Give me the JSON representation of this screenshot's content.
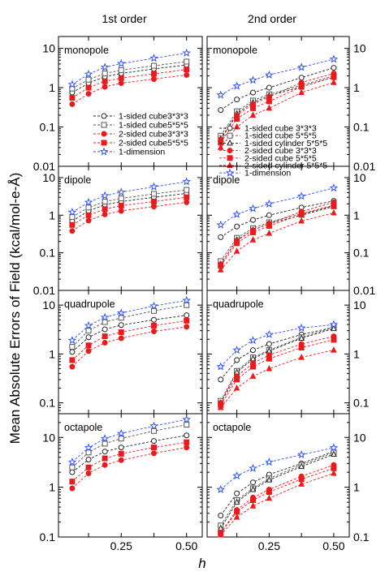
{
  "figure": {
    "column_titles": [
      "1st order",
      "2nd order"
    ],
    "ylabel": "Mean Absolute Errors of Field (kcal/mol-e-Å)",
    "xlabel": "h"
  },
  "colors": {
    "black": "#222222",
    "gray": "#555555",
    "red": "#e02020",
    "blue": "#3355ee"
  },
  "chart_data": [
    {
      "type": "line",
      "panel": "1st order / monopole",
      "label": "monopole",
      "yscale": "log",
      "ylim": [
        0.01,
        20
      ],
      "xlim": [
        0.01,
        0.56
      ],
      "x": [
        0.0625,
        0.125,
        0.1875,
        0.25,
        0.375,
        0.5
      ],
      "xticks": [
        "0.25",
        "0.50"
      ],
      "yticks": [
        "0.01",
        "0.1",
        "1",
        "10"
      ],
      "legend": "bottom-left",
      "series": [
        {
          "name": "1-sided cube3*3*3",
          "color": "black",
          "marker": "circle-open",
          "values": [
            0.75,
            1.3,
            1.9,
            2.3,
            3.0,
            3.8
          ]
        },
        {
          "name": "1-sided cube5*5*5",
          "color": "gray",
          "marker": "square-open",
          "values": [
            0.95,
            1.6,
            2.3,
            2.8,
            3.6,
            4.6
          ]
        },
        {
          "name": "2-sided cube3*3*3",
          "color": "red",
          "marker": "circle",
          "values": [
            0.38,
            0.7,
            1.05,
            1.3,
            1.65,
            2.1
          ]
        },
        {
          "name": "2-sided cube5*5*5",
          "color": "red",
          "marker": "square",
          "values": [
            0.55,
            1.0,
            1.45,
            1.75,
            2.25,
            2.9
          ]
        },
        {
          "name": "1-dimension",
          "color": "blue",
          "marker": "star-open",
          "values": [
            1.2,
            2.2,
            3.3,
            4.1,
            5.6,
            7.6
          ]
        }
      ]
    },
    {
      "type": "line",
      "panel": "1st order / dipole",
      "label": "dipole",
      "yscale": "log",
      "ylim": [
        0.01,
        20
      ],
      "xlim": [
        0.01,
        0.56
      ],
      "x": [
        0.0625,
        0.125,
        0.1875,
        0.25,
        0.375,
        0.5
      ],
      "xticks": [
        "0.25",
        "0.50"
      ],
      "yticks": [
        "0.01",
        "0.1",
        "1",
        "10"
      ],
      "series": [
        {
          "name": "1-sided cube3*3*3",
          "color": "black",
          "marker": "circle-open",
          "values": [
            0.7,
            1.3,
            1.9,
            2.3,
            3.0,
            3.8
          ]
        },
        {
          "name": "1-sided cube5*5*5",
          "color": "gray",
          "marker": "square-open",
          "values": [
            0.9,
            1.6,
            2.3,
            2.8,
            3.7,
            4.7
          ]
        },
        {
          "name": "2-sided cube3*3*3",
          "color": "red",
          "marker": "circle",
          "values": [
            0.38,
            0.72,
            1.05,
            1.3,
            1.7,
            2.2
          ]
        },
        {
          "name": "2-sided cube5*5*5",
          "color": "red",
          "marker": "square",
          "values": [
            0.55,
            1.0,
            1.45,
            1.8,
            2.3,
            3.0
          ]
        },
        {
          "name": "1-dimension",
          "color": "blue",
          "marker": "star-open",
          "values": [
            1.2,
            2.2,
            3.3,
            4.1,
            5.7,
            7.8
          ]
        }
      ]
    },
    {
      "type": "line",
      "panel": "1st order / quadrupole",
      "label": "quadrupole",
      "yscale": "log",
      "ylim": [
        0.06,
        20
      ],
      "xlim": [
        0.01,
        0.56
      ],
      "x": [
        0.0625,
        0.125,
        0.1875,
        0.25,
        0.375,
        0.5
      ],
      "xticks": [
        "0.25",
        "0.50"
      ],
      "yticks": [
        "0.1",
        "1",
        "10"
      ],
      "series": [
        {
          "name": "1-sided cube3*3*3",
          "color": "black",
          "marker": "circle-open",
          "values": [
            1.1,
            2.2,
            3.2,
            3.9,
            5.0,
            6.2
          ]
        },
        {
          "name": "1-sided cube5*5*5",
          "color": "gray",
          "marker": "square-open",
          "values": [
            1.4,
            3.0,
            4.5,
            5.5,
            7.6,
            10.0
          ]
        },
        {
          "name": "2-sided cube3*3*3",
          "color": "red",
          "marker": "circle",
          "values": [
            0.55,
            1.15,
            1.7,
            2.1,
            2.9,
            3.6
          ]
        },
        {
          "name": "2-sided cube5*5*5",
          "color": "red",
          "marker": "square",
          "values": [
            0.75,
            1.5,
            2.3,
            2.8,
            3.8,
            4.8
          ]
        },
        {
          "name": "1-dimension",
          "color": "blue",
          "marker": "star-open",
          "values": [
            1.9,
            3.8,
            5.6,
            6.9,
            9.6,
            12.5
          ]
        }
      ]
    },
    {
      "type": "line",
      "panel": "1st order / octapole",
      "label": "octapole",
      "yscale": "log",
      "ylim": [
        0.1,
        30
      ],
      "xlim": [
        0.01,
        0.56
      ],
      "x": [
        0.0625,
        0.125,
        0.1875,
        0.25,
        0.375,
        0.5
      ],
      "xticks": [
        "0.25",
        "0.50"
      ],
      "yticks": [
        "0.1",
        "1",
        "10"
      ],
      "series": [
        {
          "name": "1-sided cube3*3*3",
          "color": "black",
          "marker": "circle-open",
          "values": [
            2.0,
            3.6,
            5.2,
            6.3,
            8.5,
            11.0
          ]
        },
        {
          "name": "1-sided cube5*5*5",
          "color": "gray",
          "marker": "square-open",
          "values": [
            2.5,
            5.0,
            7.5,
            9.5,
            13.5,
            18.0
          ]
        },
        {
          "name": "2-sided cube3*3*3",
          "color": "red",
          "marker": "circle",
          "values": [
            0.95,
            1.9,
            2.8,
            3.5,
            4.8,
            6.3
          ]
        },
        {
          "name": "2-sided cube5*5*5",
          "color": "red",
          "marker": "square",
          "values": [
            1.3,
            2.5,
            3.8,
            4.7,
            6.3,
            8.0
          ]
        },
        {
          "name": "1-dimension",
          "color": "blue",
          "marker": "star-open",
          "values": [
            3.2,
            6.2,
            9.5,
            12.0,
            17.0,
            23.0
          ]
        }
      ]
    },
    {
      "type": "line",
      "panel": "2nd order / monopole",
      "label": "monopole",
      "yscale": "log",
      "ylim": [
        0.01,
        20
      ],
      "xlim": [
        0.01,
        0.56
      ],
      "x": [
        0.0625,
        0.125,
        0.1875,
        0.25,
        0.375,
        0.5
      ],
      "xticks": [
        "0.25",
        "0.50"
      ],
      "yticks": [
        "0.01",
        "0.1",
        "1",
        "10"
      ],
      "legend": "bottom-left",
      "series": [
        {
          "name": "1-sided cube 3*3*3",
          "color": "black",
          "marker": "circle-open",
          "values": [
            0.27,
            0.5,
            0.75,
            1.0,
            1.8,
            3.2
          ]
        },
        {
          "name": "1-sided cube 5*5*5",
          "color": "gray",
          "marker": "square-open",
          "values": [
            0.06,
            0.25,
            0.47,
            0.68,
            1.15,
            2.0
          ]
        },
        {
          "name": "1-sided cylinder 5*5*5",
          "color": "black",
          "marker": "triangle-open",
          "values": [
            0.05,
            0.22,
            0.42,
            0.62,
            1.05,
            1.85
          ]
        },
        {
          "name": "2-sided cube 3*3*3",
          "color": "red",
          "marker": "circle",
          "values": [
            0.048,
            0.2,
            0.38,
            0.58,
            1.35,
            2.3
          ]
        },
        {
          "name": "2-sided cube 5*5*5",
          "color": "red",
          "marker": "square",
          "values": [
            0.04,
            0.16,
            0.3,
            0.45,
            1.05,
            1.85
          ]
        },
        {
          "name": "2-sided cylinder 5*5*5",
          "color": "red",
          "marker": "triangle",
          "values": [
            0.03,
            0.1,
            0.2,
            0.3,
            0.75,
            1.35
          ]
        },
        {
          "name": "1-dimension",
          "color": "blue",
          "marker": "star-open",
          "values": [
            0.65,
            1.1,
            1.55,
            2.1,
            3.3,
            5.3
          ]
        }
      ]
    },
    {
      "type": "line",
      "panel": "2nd order / dipole",
      "label": "dipole",
      "yscale": "log",
      "ylim": [
        0.01,
        20
      ],
      "xlim": [
        0.01,
        0.56
      ],
      "x": [
        0.0625,
        0.125,
        0.1875,
        0.25,
        0.375,
        0.5
      ],
      "xticks": [
        "0.25",
        "0.50"
      ],
      "yticks": [
        "0.01",
        "0.1",
        "1",
        "10"
      ],
      "series": [
        {
          "name": "1-sided cube 3*3*3",
          "color": "black",
          "marker": "circle-open",
          "values": [
            0.26,
            0.5,
            0.75,
            1.0,
            1.6,
            2.4
          ]
        },
        {
          "name": "1-sided cube 5*5*5",
          "color": "gray",
          "marker": "square-open",
          "values": [
            0.06,
            0.25,
            0.45,
            0.65,
            1.1,
            1.85
          ]
        },
        {
          "name": "1-sided cylinder 5*5*5",
          "color": "black",
          "marker": "triangle-open",
          "values": [
            0.05,
            0.22,
            0.4,
            0.6,
            1.0,
            1.7
          ]
        },
        {
          "name": "2-sided cube 3*3*3",
          "color": "red",
          "marker": "circle",
          "values": [
            0.05,
            0.21,
            0.4,
            0.6,
            1.25,
            2.2
          ]
        },
        {
          "name": "2-sided cube 5*5*5",
          "color": "red",
          "marker": "square",
          "values": [
            0.045,
            0.18,
            0.35,
            0.52,
            1.05,
            1.8
          ]
        },
        {
          "name": "2-sided cylinder 5*5*5",
          "color": "red",
          "marker": "triangle",
          "values": [
            0.035,
            0.11,
            0.22,
            0.33,
            0.7,
            1.15
          ]
        },
        {
          "name": "1-dimension",
          "color": "blue",
          "marker": "star-open",
          "values": [
            0.55,
            1.05,
            1.5,
            2.0,
            3.2,
            5.3
          ]
        }
      ]
    },
    {
      "type": "line",
      "panel": "2nd order / quadrupole",
      "label": "quadrupole",
      "yscale": "log",
      "ylim": [
        0.06,
        20
      ],
      "xlim": [
        0.01,
        0.56
      ],
      "x": [
        0.0625,
        0.125,
        0.1875,
        0.25,
        0.375,
        0.5
      ],
      "xticks": [
        "0.25",
        "0.50"
      ],
      "yticks": [
        "0.1",
        "1",
        "10"
      ],
      "series": [
        {
          "name": "1-sided cube 3*3*3",
          "color": "black",
          "marker": "circle-open",
          "values": [
            0.3,
            0.75,
            1.2,
            1.6,
            2.5,
            3.5
          ]
        },
        {
          "name": "1-sided cube 5*5*5",
          "color": "gray",
          "marker": "square-open",
          "values": [
            0.11,
            0.45,
            0.85,
            1.2,
            2.2,
            3.5
          ]
        },
        {
          "name": "1-sided cylinder 5*5*5",
          "color": "black",
          "marker": "triangle-open",
          "values": [
            0.1,
            0.42,
            0.8,
            1.15,
            2.1,
            3.3
          ]
        },
        {
          "name": "2-sided cube 3*3*3",
          "color": "red",
          "marker": "circle",
          "values": [
            0.1,
            0.35,
            0.65,
            0.95,
            1.6,
            2.3
          ]
        },
        {
          "name": "2-sided cube 5*5*5",
          "color": "red",
          "marker": "square",
          "values": [
            0.09,
            0.3,
            0.55,
            0.8,
            1.35,
            1.95
          ]
        },
        {
          "name": "2-sided cylinder 5*5*5",
          "color": "red",
          "marker": "triangle",
          "values": [
            0.08,
            0.2,
            0.35,
            0.5,
            0.85,
            1.2
          ]
        },
        {
          "name": "1-dimension",
          "color": "blue",
          "marker": "star-open",
          "values": [
            0.55,
            1.2,
            1.9,
            2.5,
            3.4,
            4.0
          ]
        }
      ]
    },
    {
      "type": "line",
      "panel": "2nd order / octapole",
      "label": "octapole",
      "yscale": "log",
      "ylim": [
        0.1,
        30
      ],
      "xlim": [
        0.01,
        0.56
      ],
      "x": [
        0.0625,
        0.125,
        0.1875,
        0.25,
        0.375,
        0.5
      ],
      "xticks": [
        "0.25",
        "0.50"
      ],
      "yticks": [
        "0.1",
        "1",
        "10"
      ],
      "series": [
        {
          "name": "1-sided cube 3*3*3",
          "color": "black",
          "marker": "circle-open",
          "values": [
            0.27,
            0.75,
            1.25,
            1.8,
            3.0,
            5.3
          ]
        },
        {
          "name": "1-sided cube 5*5*5",
          "color": "gray",
          "marker": "square-open",
          "values": [
            0.17,
            0.55,
            0.95,
            1.5,
            2.8,
            5.0
          ]
        },
        {
          "name": "1-sided cylinder 5*5*5",
          "color": "black",
          "marker": "triangle-open",
          "values": [
            0.15,
            0.5,
            0.9,
            1.4,
            2.6,
            4.6
          ]
        },
        {
          "name": "2-sided cube 3*3*3",
          "color": "red",
          "marker": "circle",
          "values": [
            0.12,
            0.35,
            0.62,
            0.9,
            1.65,
            2.8
          ]
        },
        {
          "name": "2-sided cube 5*5*5",
          "color": "red",
          "marker": "square",
          "values": [
            0.12,
            0.32,
            0.55,
            0.8,
            1.45,
            2.4
          ]
        },
        {
          "name": "2-sided cylinder 5*5*5",
          "color": "red",
          "marker": "triangle",
          "values": [
            0.11,
            0.25,
            0.42,
            0.6,
            1.15,
            1.9
          ]
        },
        {
          "name": "1-dimension",
          "color": "blue",
          "marker": "star-open",
          "values": [
            0.9,
            1.7,
            2.4,
            3.2,
            4.5,
            6.2
          ]
        }
      ]
    }
  ]
}
